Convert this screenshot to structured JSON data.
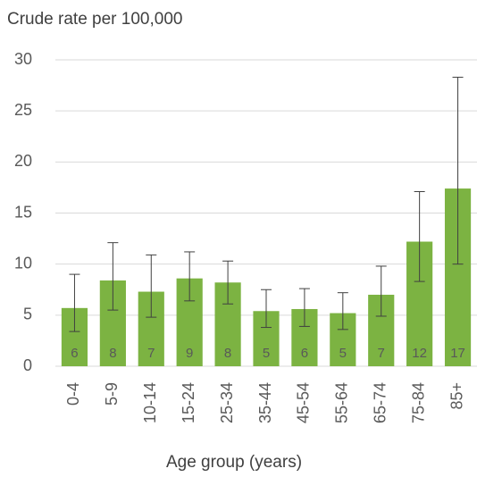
{
  "chart_data": {
    "type": "bar",
    "title": "Crude rate per 100,000",
    "x_label": "Age group (years)",
    "categories": [
      "0-4",
      "5-9",
      "10-14",
      "15-24",
      "25-34",
      "35-44",
      "45-54",
      "55-64",
      "65-74",
      "75-84",
      "85+"
    ],
    "values": [
      5.7,
      8.4,
      7.3,
      8.6,
      8.2,
      5.4,
      5.6,
      5.2,
      7.0,
      12.2,
      17.4
    ],
    "value_labels": [
      "6",
      "8",
      "7",
      "9",
      "8",
      "5",
      "6",
      "5",
      "7",
      "12",
      "17"
    ],
    "ci_lower": [
      3.4,
      5.5,
      4.8,
      6.4,
      6.1,
      3.8,
      3.9,
      3.6,
      4.9,
      8.3,
      10.0
    ],
    "ci_upper": [
      9.0,
      12.1,
      10.9,
      11.2,
      10.3,
      7.5,
      7.6,
      7.2,
      9.8,
      17.1,
      28.3
    ],
    "color": "#7cb342",
    "ylim": [
      0,
      30
    ],
    "yticks": [
      0,
      5,
      10,
      15,
      20,
      25,
      30
    ],
    "grid": true
  }
}
